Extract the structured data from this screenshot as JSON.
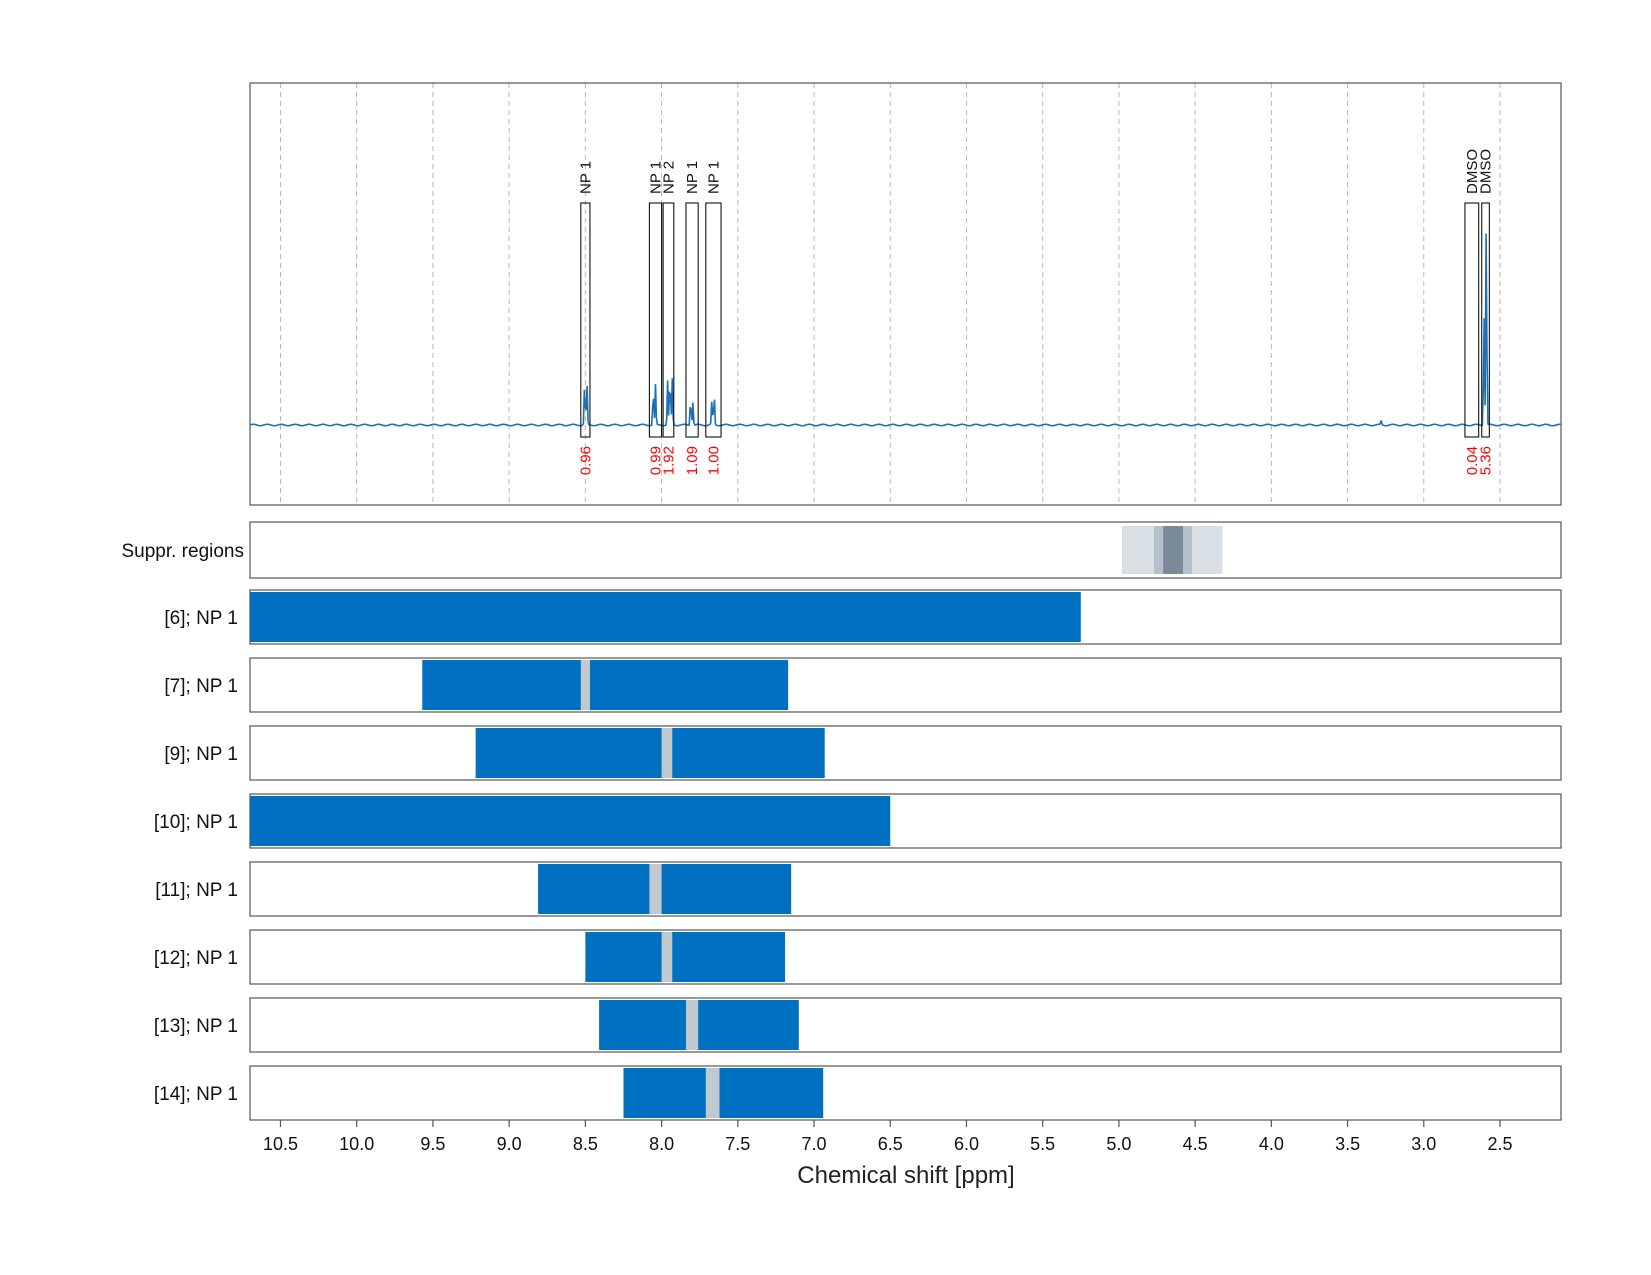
{
  "chart_data": {
    "type": "nmr-spectrum-with-region-tracks",
    "xlabel": "Chemical shift [ppm]",
    "x_range": [
      10.7,
      2.1
    ],
    "x_reversed": true,
    "x_ticks": [
      10.5,
      10.0,
      9.5,
      9.0,
      8.5,
      8.0,
      7.5,
      7.0,
      6.5,
      6.0,
      5.5,
      5.0,
      4.5,
      4.0,
      3.5,
      3.0,
      2.5
    ],
    "x_tick_labels": [
      "10.5",
      "10.0",
      "9.5",
      "9.0",
      "8.5",
      "8.0",
      "7.5",
      "7.0",
      "6.5",
      "6.0",
      "5.5",
      "5.0",
      "4.5",
      "4.0",
      "3.5",
      "3.0",
      "2.5"
    ],
    "grid": true,
    "colors": {
      "spectrum": "#1f6fb4",
      "bar": "#0070c0",
      "gap": "#c0c8d0",
      "integral": "#ff0000",
      "supp_light": "#d8e0e6",
      "supp_mid": "#b4c0ca",
      "supp_dark": "#7a8a98"
    },
    "spectrum": {
      "baseline": 0.0,
      "peaks": [
        {
          "ppm": 8.505,
          "height": 0.2
        },
        {
          "ppm": 8.49,
          "height": 0.2
        },
        {
          "ppm": 8.055,
          "height": 0.17
        },
        {
          "ppm": 8.04,
          "height": 0.19
        },
        {
          "ppm": 7.96,
          "height": 0.21
        },
        {
          "ppm": 7.945,
          "height": 0.23
        },
        {
          "ppm": 7.93,
          "height": 0.22
        },
        {
          "ppm": 7.81,
          "height": 0.13
        },
        {
          "ppm": 7.795,
          "height": 0.11
        },
        {
          "ppm": 7.67,
          "height": 0.12
        },
        {
          "ppm": 7.655,
          "height": 0.14
        },
        {
          "ppm": 3.28,
          "height": 0.02
        },
        {
          "ppm": 2.59,
          "height": 1.0
        },
        {
          "ppm": 2.605,
          "height": 0.55
        }
      ]
    },
    "annotations": [
      {
        "label": "NP 1",
        "integral": "0.96",
        "from": 8.53,
        "to": 8.47
      },
      {
        "label": "NP 1",
        "integral": "0.99",
        "from": 8.08,
        "to": 8.0
      },
      {
        "label": "NP 2",
        "integral": "1.92",
        "from": 7.99,
        "to": 7.92
      },
      {
        "label": "NP 1",
        "integral": "1.09",
        "from": 7.84,
        "to": 7.76
      },
      {
        "label": "NP 1",
        "integral": "1.00",
        "from": 7.71,
        "to": 7.61
      },
      {
        "label": "DMSO",
        "integral": "0.04",
        "from": 2.73,
        "to": 2.64
      },
      {
        "label": "DMSO",
        "integral": "5.36",
        "from": 2.62,
        "to": 2.57
      }
    ],
    "suppressed_regions": {
      "label": "Suppr. regions",
      "bands": [
        {
          "from": 4.98,
          "to": 4.32,
          "level": "light"
        },
        {
          "from": 4.77,
          "to": 4.52,
          "level": "mid"
        },
        {
          "from": 4.71,
          "to": 4.58,
          "level": "dark"
        }
      ]
    },
    "tracks": [
      {
        "label": "[6]; NP 1",
        "from": 10.7,
        "to": 5.25,
        "gap": null
      },
      {
        "label": "[7]; NP 1",
        "from": 9.57,
        "to": 7.17,
        "gap": [
          8.53,
          8.47
        ]
      },
      {
        "label": "[9]; NP 1",
        "from": 9.22,
        "to": 6.93,
        "gap": [
          8.0,
          7.93
        ]
      },
      {
        "label": "[10]; NP 1",
        "from": 10.7,
        "to": 6.5,
        "gap": null
      },
      {
        "label": "[11]; NP 1",
        "from": 8.81,
        "to": 7.15,
        "gap": [
          8.08,
          8.0
        ]
      },
      {
        "label": "[12]; NP 1",
        "from": 8.5,
        "to": 7.19,
        "gap": [
          8.0,
          7.93
        ]
      },
      {
        "label": "[13]; NP 1",
        "from": 8.41,
        "to": 7.1,
        "gap": [
          7.84,
          7.76
        ]
      },
      {
        "label": "[14]; NP 1",
        "from": 8.25,
        "to": 6.94,
        "gap": [
          7.71,
          7.62
        ]
      }
    ]
  }
}
